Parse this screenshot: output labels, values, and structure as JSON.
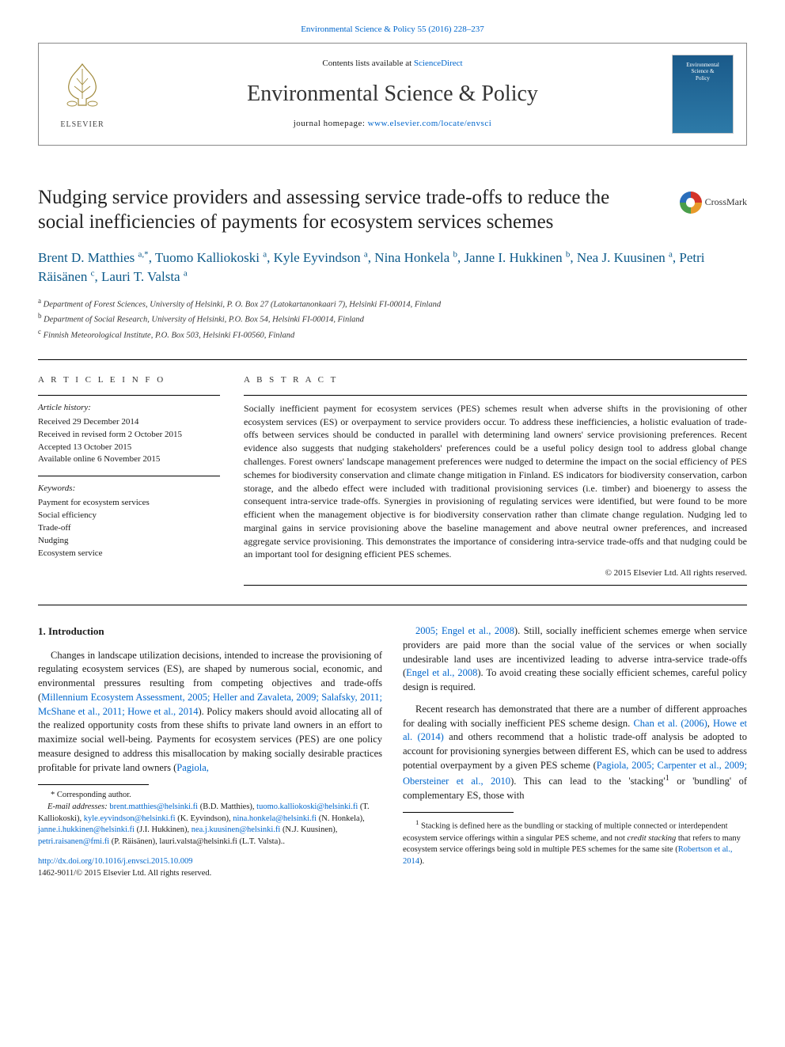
{
  "header": {
    "top_citation": "Environmental Science & Policy 55 (2016) 228–237",
    "sciencedirect_prefix": "Contents lists available at ",
    "sciencedirect_link": "ScienceDirect",
    "journal_name": "Environmental Science & Policy",
    "homepage_prefix": "journal homepage: ",
    "homepage_link": "www.elsevier.com/locate/envsci",
    "elsevier_label": "ELSEVIER",
    "cover_line1": "Environmental",
    "cover_line2": "Science &",
    "cover_line3": "Policy"
  },
  "crossmark": {
    "label": "CrossMark"
  },
  "title": "Nudging service providers and assessing service trade-offs to reduce the social inefficiencies of payments for ecosystem services schemes",
  "authors_html": "Brent D. Matthies <sup>a,*</sup>, Tuomo Kalliokoski <sup>a</sup>, Kyle Eyvindson <sup>a</sup>, Nina Honkela <sup>b</sup>, Janne I. Hukkinen <sup>b</sup>, Nea J. Kuusinen <sup>a</sup>, Petri Räisänen <sup>c</sup>, Lauri T. Valsta <sup>a</sup>",
  "affiliations": {
    "a": "Department of Forest Sciences, University of Helsinki, P. O. Box 27 (Latokartanonkaari 7), Helsinki FI-00014, Finland",
    "b": "Department of Social Research, University of Helsinki, P.O. Box 54, Helsinki FI-00014, Finland",
    "c": "Finnish Meteorological Institute, P.O. Box 503, Helsinki FI-00560, Finland"
  },
  "article_info": {
    "heading": "A R T I C L E  I N F O",
    "history_label": "Article history:",
    "history": [
      "Received 29 December 2014",
      "Received in revised form 2 October 2015",
      "Accepted 13 October 2015",
      "Available online 6 November 2015"
    ],
    "keywords_label": "Keywords:",
    "keywords": [
      "Payment for ecosystem services",
      "Social efficiency",
      "Trade-off",
      "Nudging",
      "Ecosystem service"
    ]
  },
  "abstract": {
    "heading": "A B S T R A C T",
    "text": "Socially inefficient payment for ecosystem services (PES) schemes result when adverse shifts in the provisioning of other ecosystem services (ES) or overpayment to service providers occur. To address these inefficiencies, a holistic evaluation of trade-offs between services should be conducted in parallel with determining land owners' service provisioning preferences. Recent evidence also suggests that nudging stakeholders' preferences could be a useful policy design tool to address global change challenges. Forest owners' landscape management preferences were nudged to determine the impact on the social efficiency of PES schemes for biodiversity conservation and climate change mitigation in Finland. ES indicators for biodiversity conservation, carbon storage, and the albedo effect were included with traditional provisioning services (i.e. timber) and bioenergy to assess the consequent intra-service trade-offs. Synergies in provisioning of regulating services were identified, but were found to be more efficient when the management objective is for biodiversity conservation rather than climate change regulation. Nudging led to marginal gains in service provisioning above the baseline management and above neutral owner preferences, and increased aggregate service provisioning. This demonstrates the importance of considering intra-service trade-offs and that nudging could be an important tool for designing efficient PES schemes.",
    "copyright": "© 2015 Elsevier Ltd. All rights reserved."
  },
  "body": {
    "section_heading": "1. Introduction",
    "left_paragraphs": [
      "Changes in landscape utilization decisions, intended to increase the provisioning of regulating ecosystem services (ES), are shaped by numerous social, economic, and environmental pressures resulting from competing objectives and trade-offs (<a href='#'>Millennium Ecosystem Assessment, 2005; Heller and Zavaleta, 2009; Salafsky, 2011; McShane et al., 2011; Howe et al., 2014</a>). Policy makers should avoid allocating all of the realized opportunity costs from these shifts to private land owners in an effort to maximize social well-being. Payments for ecosystem services (PES) are one policy measure designed to address this misallocation by making socially desirable practices profitable for private land owners (<a href='#'>Pagiola,</a>"
    ],
    "right_paragraphs": [
      "<a href='#'>2005; Engel et al., 2008</a>). Still, socially inefficient schemes emerge when service providers are paid more than the social value of the services or when socially undesirable land uses are incentivized leading to adverse intra-service trade-offs (<a href='#'>Engel et al., 2008</a>). To avoid creating these socially efficient schemes, careful policy design is required.",
      "Recent research has demonstrated that there are a number of different approaches for dealing with socially inefficient PES scheme design. <a href='#'>Chan et al. (2006)</a>, <a href='#'>Howe et al. (2014)</a> and others recommend that a holistic trade-off analysis be adopted to account for provisioning synergies between different ES, which can be used to address potential overpayment by a given PES scheme (<a href='#'>Pagiola, 2005; Carpenter et al., 2009; Obersteiner et al., 2010</a>). This can lead to the 'stacking'<sup>1</sup> or 'bundling' of complementary ES, those with"
    ]
  },
  "footnotes": {
    "corresponding": "* Corresponding author.",
    "emails_label": "E-mail addresses: ",
    "emails": "brent.matthies@helsinki.fi (B.D. Matthies), tuomo.kalliokoski@helsinki.fi (T. Kalliokoski), kyle.eyvindson@helsinki.fi (K. Eyvindson), nina.honkela@helsinki.fi (N. Honkela), janne.i.hukkinen@helsinki.fi (J.I. Hukkinen), nea.j.kuusinen@helsinki.fi (N.J. Kuusinen), petri.raisanen@fmi.fi (P. Räisänen), lauri.valsta@helsinki.fi (L.T. Valsta).",
    "stacking_note": "<sup>1</sup> Stacking is defined here as the bundling or stacking of multiple connected or interdependent ecosystem service offerings within a singular PES scheme, and not <i>credit stacking</i> that refers to many ecosystem service offerings being sold in multiple PES schemes for the same site (<a href='#'>Robertson et al., 2014</a>)."
  },
  "doi": {
    "link": "http://dx.doi.org/10.1016/j.envsci.2015.10.009",
    "issn_line": "1462-9011/© 2015 Elsevier Ltd. All rights reserved."
  },
  "colors": {
    "link": "#0066cc",
    "author": "#0d5a8a",
    "cover_grad_top": "#1a5a8a",
    "cover_grad_bot": "#2d7aa8"
  }
}
